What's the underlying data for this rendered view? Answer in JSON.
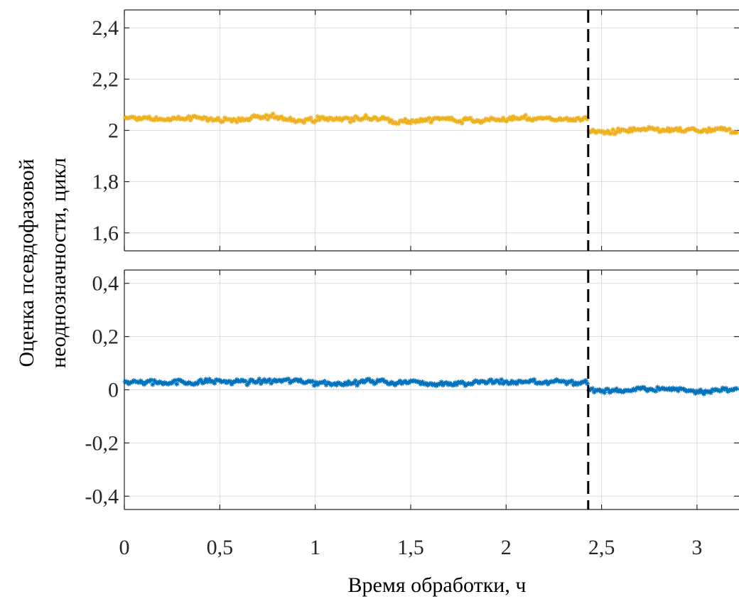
{
  "chart_data": {
    "type": "scatter",
    "xlabel": "Время обработки, ч",
    "ylabel_line1": "Оценка псевдофазовой",
    "ylabel_line2": "неоднозначности, цикл",
    "xlim": [
      0,
      3.22
    ],
    "x_ticks": [
      0,
      0.5,
      1,
      1.5,
      2,
      2.5,
      3
    ],
    "x_tick_labels": [
      "0",
      "0,5",
      "1",
      "1,5",
      "2",
      "2,5",
      "3"
    ],
    "event_line_x": 2.43,
    "grid": true,
    "marker": "asterisk",
    "panels": [
      {
        "name": "top",
        "ylim": [
          1.53,
          2.47
        ],
        "y_ticks": [
          1.6,
          1.8,
          2.0,
          2.2,
          2.4
        ],
        "y_tick_labels": [
          "1,6",
          "1,8",
          "2",
          "2,2",
          "2,4"
        ],
        "color": "#EDB120",
        "segments": [
          {
            "x_start": 0.0,
            "x_end": 2.43,
            "level": 2.045,
            "noise": 0.006
          },
          {
            "x_start": 2.43,
            "x_end": 3.22,
            "level": 1.995,
            "noise": 0.006
          }
        ]
      },
      {
        "name": "bottom",
        "ylim": [
          -0.45,
          0.45
        ],
        "y_ticks": [
          -0.4,
          -0.2,
          0,
          0.2,
          0.4
        ],
        "y_tick_labels": [
          "-0,4",
          "-0,2",
          "0",
          "0,2",
          "0,4"
        ],
        "color": "#0072BD",
        "segments": [
          {
            "x_start": 0.0,
            "x_end": 2.43,
            "level": 0.03,
            "noise": 0.006
          },
          {
            "x_start": 2.43,
            "x_end": 3.22,
            "level": 0.0,
            "noise": 0.005
          }
        ]
      }
    ]
  }
}
